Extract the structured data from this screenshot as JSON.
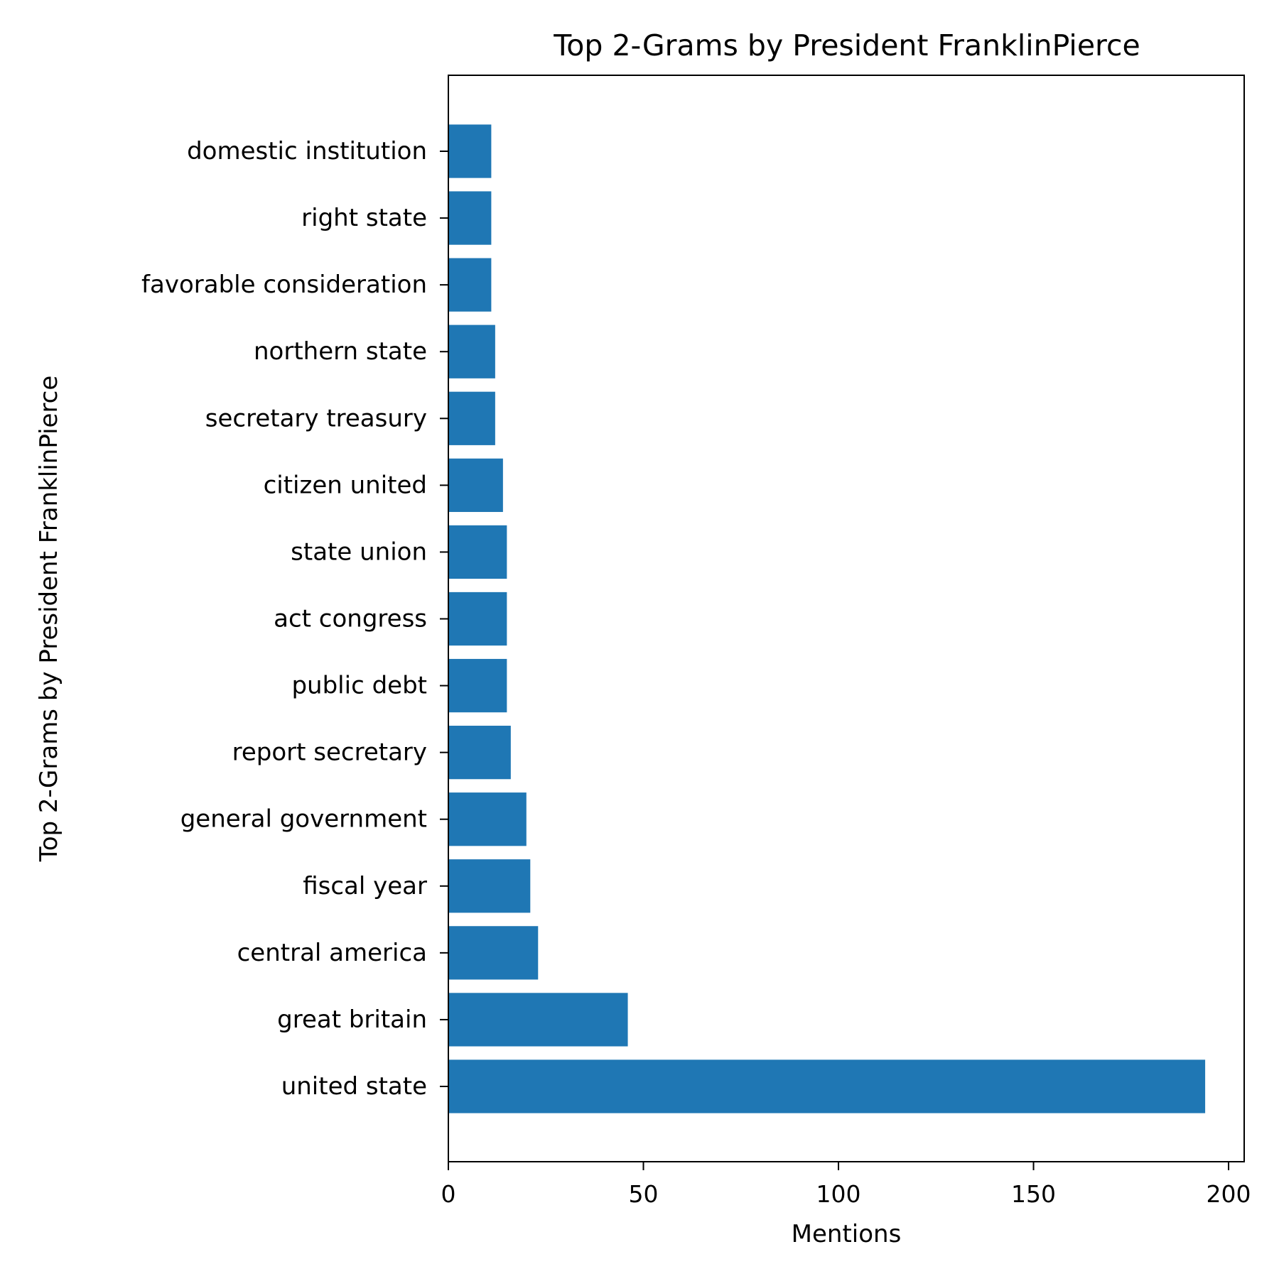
{
  "chart_data": {
    "type": "bar",
    "orientation": "horizontal",
    "title": "Top 2-Grams by President FranklinPierce",
    "xlabel": "Mentions",
    "ylabel": "Top 2-Grams by President FranklinPierce",
    "categories": [
      "united state",
      "great britain",
      "central america",
      "fiscal year",
      "general government",
      "report secretary",
      "public debt",
      "act congress",
      "state union",
      "citizen united",
      "secretary treasury",
      "northern state",
      "favorable consideration",
      "right state",
      "domestic institution"
    ],
    "values": [
      194,
      46,
      23,
      21,
      20,
      16,
      15,
      15,
      15,
      14,
      12,
      12,
      11,
      11,
      11
    ],
    "xlim": [
      0,
      204
    ],
    "xticks": [
      0,
      50,
      100,
      150,
      200
    ],
    "xtick_labels": [
      "0",
      "50",
      "100",
      "150",
      "200"
    ],
    "grid": false,
    "colors": {
      "bar": "#1f77b4",
      "axis": "#000000",
      "background": "#ffffff"
    }
  }
}
